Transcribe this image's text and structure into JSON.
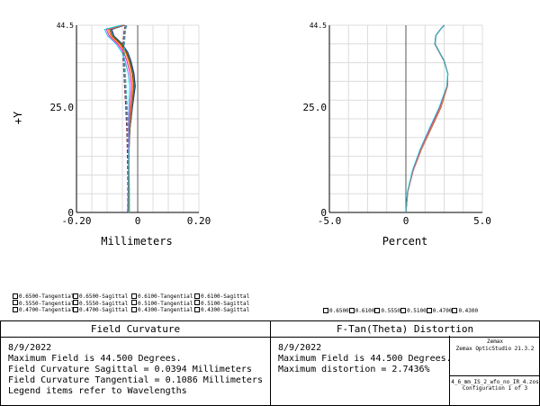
{
  "field_curvature": {
    "y_axis_label": "+Y",
    "x_axis_label": "Millimeters",
    "legend": [
      [
        "0.6500-Tangential",
        "0.6500-Sagittal",
        "0.6100-Tangential",
        "0.6100-Sagittal"
      ],
      [
        "0.5550-Tangential",
        "0.5550-Sagittal",
        "0.5100-Tangential",
        "0.5100-Sagittal"
      ],
      [
        "0.4700-Tangential",
        "0.4700-Sagittal",
        "0.4300-Tangential",
        "0.4300-Sagittal"
      ]
    ],
    "title": "Field Curvature",
    "info_lines": [
      "8/9/2022",
      "Maximum Field is 44.500 Degrees.",
      "Field Curvature Sagittal = 0.0394 Millimeters",
      "Field Curvature Tangential = 0.1086 Millimeters",
      "Legend items refer to Wavelengths"
    ]
  },
  "distortion": {
    "x_axis_label": "Percent",
    "legend": [
      "0.6500",
      "0.6100",
      "0.5550",
      "0.5100",
      "0.4700",
      "0.4300"
    ],
    "title": "F-Tan(Theta) Distortion",
    "info_lines": [
      "8/9/2022",
      "Maximum Field is 44.500 Degrees.",
      "Maximum distortion = 2.7436%"
    ]
  },
  "software": {
    "vendor": "Zemax",
    "product": "Zemax OpticStudio 21.3.2"
  },
  "file": {
    "name": "4_6_mm_IS_2_wfo_no_IR_4.zos",
    "config": "Configuration 1 of 3"
  },
  "chart_data": [
    {
      "type": "line",
      "title": "Field Curvature",
      "xlabel": "Millimeters",
      "ylabel": "+Y",
      "xlim": [
        -0.2,
        0.2
      ],
      "ylim": [
        0,
        44.5
      ],
      "x_ticks": [
        "-0.20",
        "0",
        "0.20"
      ],
      "y_ticks": [
        "0",
        "25.0",
        "44.5"
      ],
      "grid": true,
      "legend_position": "below-left",
      "series": [
        {
          "name": "0.6500-Tangential",
          "color": "#0000ff",
          "style": "solid",
          "y": [
            0,
            5,
            10,
            15,
            20,
            25,
            30,
            33,
            36,
            38,
            40,
            42,
            43.5,
            44.5
          ],
          "x": [
            -0.032,
            -0.031,
            -0.03,
            -0.029,
            -0.025,
            -0.017,
            -0.008,
            -0.012,
            -0.022,
            -0.032,
            -0.05,
            -0.078,
            -0.085,
            -0.043
          ]
        },
        {
          "name": "0.6500-Sagittal",
          "color": "#0000ff",
          "style": "dashed",
          "y": [
            0,
            5,
            10,
            15,
            20,
            25,
            30,
            33,
            36,
            38,
            40,
            42,
            43.5,
            44.5
          ],
          "x": [
            -0.032,
            -0.032,
            -0.033,
            -0.034,
            -0.036,
            -0.039,
            -0.043,
            -0.045,
            -0.047,
            -0.048,
            -0.048,
            -0.046,
            -0.044,
            -0.04
          ]
        },
        {
          "name": "0.6100-Tangential",
          "color": "#00aa00",
          "style": "solid",
          "y": [
            0,
            5,
            10,
            15,
            20,
            25,
            30,
            33,
            36,
            38,
            40,
            42,
            43.5,
            44.5
          ],
          "x": [
            -0.031,
            -0.03,
            -0.029,
            -0.028,
            -0.025,
            -0.018,
            -0.01,
            -0.014,
            -0.024,
            -0.034,
            -0.052,
            -0.08,
            -0.088,
            -0.044
          ]
        },
        {
          "name": "0.6100-Sagittal",
          "color": "#00aa00",
          "style": "dashed",
          "y": [
            0,
            5,
            10,
            15,
            20,
            25,
            30,
            33,
            36,
            38,
            40,
            42,
            43.5,
            44.5
          ],
          "x": [
            -0.031,
            -0.031,
            -0.032,
            -0.033,
            -0.035,
            -0.038,
            -0.042,
            -0.044,
            -0.046,
            -0.047,
            -0.047,
            -0.045,
            -0.043,
            -0.039
          ]
        },
        {
          "name": "0.5550-Tangential",
          "color": "#ff0000",
          "style": "solid",
          "y": [
            0,
            5,
            10,
            15,
            20,
            25,
            30,
            33,
            36,
            38,
            40,
            42,
            43.5,
            44.5
          ],
          "x": [
            -0.03,
            -0.03,
            -0.029,
            -0.028,
            -0.026,
            -0.02,
            -0.013,
            -0.017,
            -0.027,
            -0.037,
            -0.056,
            -0.084,
            -0.092,
            -0.046
          ]
        },
        {
          "name": "0.5550-Sagittal",
          "color": "#ff0000",
          "style": "dashed",
          "y": [
            0,
            5,
            10,
            15,
            20,
            25,
            30,
            33,
            36,
            38,
            40,
            42,
            43.5,
            44.5
          ],
          "x": [
            -0.03,
            -0.03,
            -0.031,
            -0.032,
            -0.034,
            -0.037,
            -0.041,
            -0.043,
            -0.045,
            -0.046,
            -0.046,
            -0.044,
            -0.042,
            -0.038
          ]
        },
        {
          "name": "0.5100-Tangential",
          "color": "#e0a800",
          "style": "solid",
          "y": [
            0,
            5,
            10,
            15,
            20,
            25,
            30,
            33,
            36,
            38,
            40,
            42,
            43.5,
            44.5
          ],
          "x": [
            -0.029,
            -0.029,
            -0.029,
            -0.028,
            -0.027,
            -0.022,
            -0.016,
            -0.02,
            -0.03,
            -0.04,
            -0.06,
            -0.088,
            -0.097,
            -0.048
          ]
        },
        {
          "name": "0.5100-Sagittal",
          "color": "#e0a800",
          "style": "dashed",
          "y": [
            0,
            5,
            10,
            15,
            20,
            25,
            30,
            33,
            36,
            38,
            40,
            42,
            43.5,
            44.5
          ],
          "x": [
            -0.029,
            -0.029,
            -0.03,
            -0.031,
            -0.033,
            -0.036,
            -0.04,
            -0.042,
            -0.044,
            -0.045,
            -0.045,
            -0.043,
            -0.041,
            -0.037
          ]
        },
        {
          "name": "0.4700-Tangential",
          "color": "#ff00ff",
          "style": "solid",
          "y": [
            0,
            5,
            10,
            15,
            20,
            25,
            30,
            33,
            36,
            38,
            40,
            42,
            43.5,
            44.5
          ],
          "x": [
            -0.028,
            -0.028,
            -0.028,
            -0.028,
            -0.028,
            -0.025,
            -0.02,
            -0.025,
            -0.035,
            -0.045,
            -0.065,
            -0.093,
            -0.102,
            -0.05
          ]
        },
        {
          "name": "0.4700-Sagittal",
          "color": "#ff00ff",
          "style": "dashed",
          "y": [
            0,
            5,
            10,
            15,
            20,
            25,
            30,
            33,
            36,
            38,
            40,
            42,
            43.5,
            44.5
          ],
          "x": [
            -0.028,
            -0.028,
            -0.029,
            -0.03,
            -0.032,
            -0.035,
            -0.039,
            -0.041,
            -0.043,
            -0.044,
            -0.044,
            -0.042,
            -0.04,
            -0.036
          ]
        },
        {
          "name": "0.4300-Tangential",
          "color": "#00cccc",
          "style": "solid",
          "y": [
            0,
            5,
            10,
            15,
            20,
            25,
            30,
            33,
            36,
            38,
            40,
            42,
            43.5,
            44.5
          ],
          "x": [
            -0.027,
            -0.027,
            -0.028,
            -0.029,
            -0.03,
            -0.029,
            -0.026,
            -0.031,
            -0.041,
            -0.051,
            -0.07,
            -0.098,
            -0.108,
            -0.052
          ]
        },
        {
          "name": "0.4300-Sagittal",
          "color": "#00cccc",
          "style": "dashed",
          "y": [
            0,
            5,
            10,
            15,
            20,
            25,
            30,
            33,
            36,
            38,
            40,
            42,
            43.5,
            44.5
          ],
          "x": [
            -0.027,
            -0.027,
            -0.028,
            -0.029,
            -0.031,
            -0.034,
            -0.038,
            -0.04,
            -0.042,
            -0.043,
            -0.043,
            -0.041,
            -0.039,
            -0.035
          ]
        }
      ]
    },
    {
      "type": "line",
      "title": "F-Tan(Theta) Distortion",
      "xlabel": "Percent",
      "ylabel": "",
      "xlim": [
        -5.0,
        5.0
      ],
      "ylim": [
        0,
        44.5
      ],
      "x_ticks": [
        "-5.0",
        "0",
        "5.0"
      ],
      "y_ticks": [
        "0",
        "25.0",
        "44.5"
      ],
      "grid": true,
      "legend_position": "below-right",
      "series": [
        {
          "name": "0.6500",
          "color": "#0000ff",
          "y": [
            0,
            5,
            10,
            15,
            20,
            25,
            30,
            33,
            36,
            38,
            40,
            42,
            43.5,
            44.5
          ],
          "x": [
            0,
            0.12,
            0.46,
            0.98,
            1.6,
            2.24,
            2.7,
            2.74,
            2.5,
            2.2,
            1.9,
            1.95,
            2.25,
            2.5
          ]
        },
        {
          "name": "0.6100",
          "color": "#00aa00",
          "y": [
            0,
            5,
            10,
            15,
            20,
            25,
            30,
            33,
            36,
            38,
            40,
            42,
            43.5,
            44.5
          ],
          "x": [
            0,
            0.12,
            0.46,
            0.98,
            1.61,
            2.25,
            2.71,
            2.74,
            2.5,
            2.2,
            1.9,
            1.95,
            2.25,
            2.5
          ]
        },
        {
          "name": "0.5550",
          "color": "#ff0000",
          "y": [
            0,
            5,
            10,
            15,
            20,
            25,
            30,
            33,
            36,
            38,
            40,
            42,
            43.5,
            44.5
          ],
          "x": [
            0,
            0.13,
            0.48,
            1.02,
            1.66,
            2.3,
            2.72,
            2.74,
            2.49,
            2.19,
            1.89,
            1.95,
            2.25,
            2.5
          ]
        },
        {
          "name": "0.5100",
          "color": "#e0a800",
          "y": [
            0,
            5,
            10,
            15,
            20,
            25,
            30,
            33,
            36,
            38,
            40,
            42,
            43.5,
            44.5
          ],
          "x": [
            0,
            0.13,
            0.47,
            1.0,
            1.63,
            2.27,
            2.71,
            2.74,
            2.5,
            2.2,
            1.9,
            1.95,
            2.25,
            2.5
          ]
        },
        {
          "name": "0.4700",
          "color": "#ff00ff",
          "y": [
            0,
            5,
            10,
            15,
            20,
            25,
            30,
            33,
            36,
            38,
            40,
            42,
            43.5,
            44.5
          ],
          "x": [
            0,
            0.12,
            0.45,
            0.96,
            1.58,
            2.22,
            2.69,
            2.74,
            2.51,
            2.21,
            1.91,
            1.96,
            2.26,
            2.51
          ]
        },
        {
          "name": "0.4300",
          "color": "#00cccc",
          "y": [
            0,
            5,
            10,
            15,
            20,
            25,
            30,
            33,
            36,
            38,
            40,
            42,
            43.5,
            44.5
          ],
          "x": [
            0,
            0.11,
            0.43,
            0.93,
            1.54,
            2.18,
            2.67,
            2.74,
            2.52,
            2.22,
            1.92,
            1.97,
            2.27,
            2.52
          ]
        }
      ]
    }
  ]
}
